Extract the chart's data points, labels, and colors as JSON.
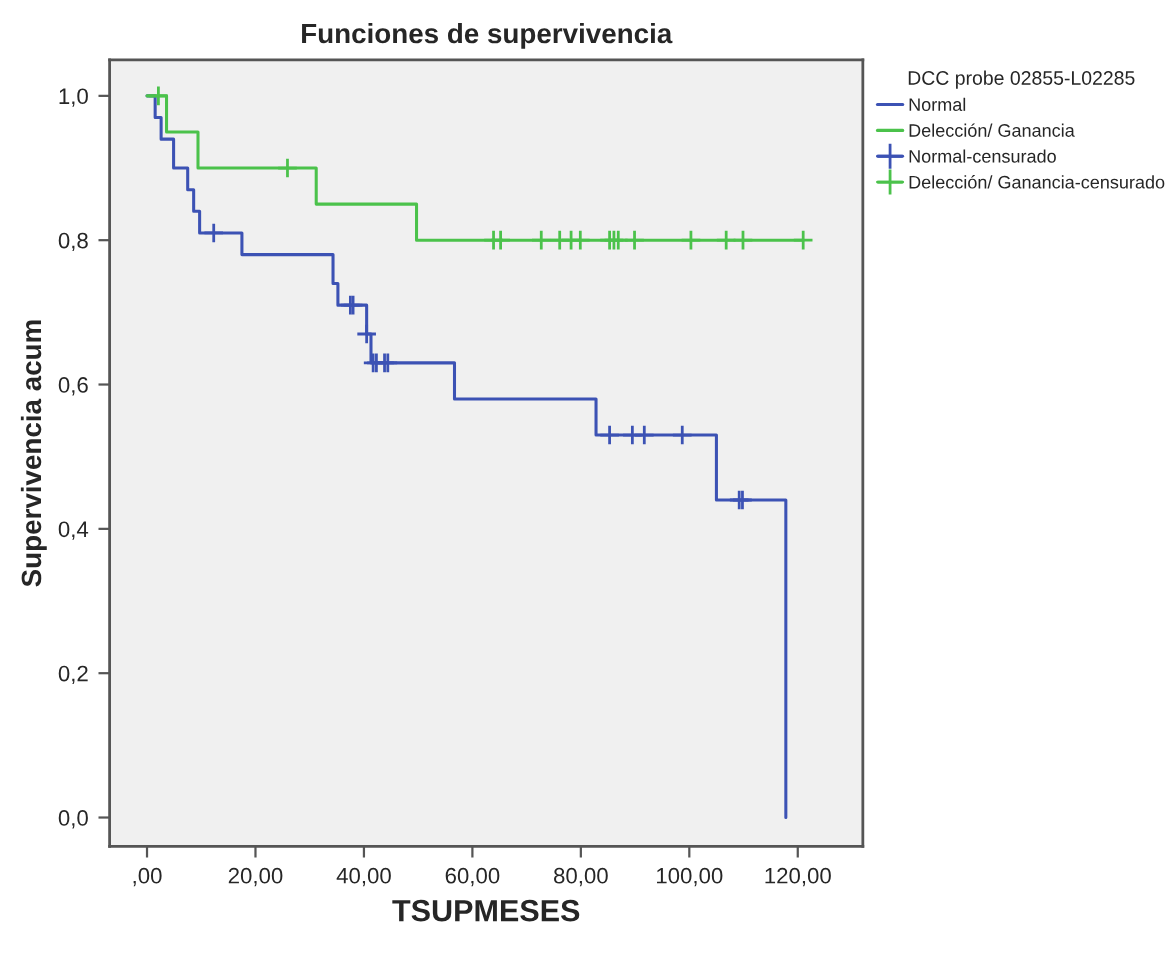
{
  "chart_data": {
    "type": "step",
    "title": "Funciones de supervivencia",
    "xlabel": "TSUPMESES",
    "ylabel": "Supervivencia acum",
    "legend_title": "DCC probe 02855-L02285",
    "xlim": [
      -6.9,
      132
    ],
    "ylim": [
      -0.04,
      1.05
    ],
    "xticks": [
      {
        "value": 0,
        "label": ",00"
      },
      {
        "value": 20,
        "label": "20,00"
      },
      {
        "value": 40,
        "label": "40,00"
      },
      {
        "value": 60,
        "label": "60,00"
      },
      {
        "value": 80,
        "label": "80,00"
      },
      {
        "value": 100,
        "label": "100,00"
      },
      {
        "value": 120,
        "label": "120,00"
      }
    ],
    "yticks": [
      {
        "value": 0,
        "label": "0,0"
      },
      {
        "value": 0.2,
        "label": "0,2"
      },
      {
        "value": 0.4,
        "label": "0,4"
      },
      {
        "value": 0.6,
        "label": "0,6"
      },
      {
        "value": 0.8,
        "label": "0,8"
      },
      {
        "value": 1.0,
        "label": "1,0"
      }
    ],
    "grid": false,
    "legend": "right",
    "series": [
      {
        "name": "Normal",
        "color": "#3c52b4",
        "x": [
          0,
          1.5,
          2.6,
          4.9,
          7.5,
          8.6,
          9.7,
          17.5,
          34.3,
          35.2,
          40.5,
          41.3,
          56.7,
          82.8,
          105.0,
          117.8
        ],
        "values": [
          1.0,
          0.97,
          0.94,
          0.9,
          0.87,
          0.84,
          0.81,
          0.78,
          0.74,
          0.71,
          0.67,
          0.63,
          0.58,
          0.53,
          0.44,
          0.0
        ]
      },
      {
        "name": "Delección/ Ganancia",
        "color": "#4bc24b",
        "x": [
          0,
          3.6,
          9.4,
          31.2,
          49.7,
          121.0
        ],
        "values": [
          1.0,
          0.95,
          0.9,
          0.85,
          0.8,
          0.8
        ]
      },
      {
        "name": "Normal-censurado",
        "type": "scatter",
        "marker": "cross",
        "color": "#3c52b4",
        "x": [
          12.3,
          37.5,
          38.0,
          40.5,
          41.7,
          42.3,
          43.8,
          44.4,
          85.3,
          89.5,
          91.7,
          98.7,
          109.2,
          109.8
        ],
        "values": [
          0.81,
          0.71,
          0.71,
          0.67,
          0.63,
          0.63,
          0.63,
          0.63,
          0.53,
          0.53,
          0.53,
          0.53,
          0.44,
          0.44
        ]
      },
      {
        "name": "Delección/ Ganancia-censurado",
        "type": "scatter",
        "marker": "cross",
        "color": "#4bc24b",
        "x": [
          2.1,
          25.9,
          63.9,
          65.2,
          72.7,
          76.1,
          78.2,
          79.9,
          85.3,
          86.1,
          86.9,
          89.9,
          100.3,
          106.8,
          109.9,
          121.0
        ],
        "values": [
          1.0,
          0.9,
          0.8,
          0.8,
          0.8,
          0.8,
          0.8,
          0.8,
          0.8,
          0.8,
          0.8,
          0.8,
          0.8,
          0.8,
          0.8,
          0.8
        ]
      }
    ]
  }
}
